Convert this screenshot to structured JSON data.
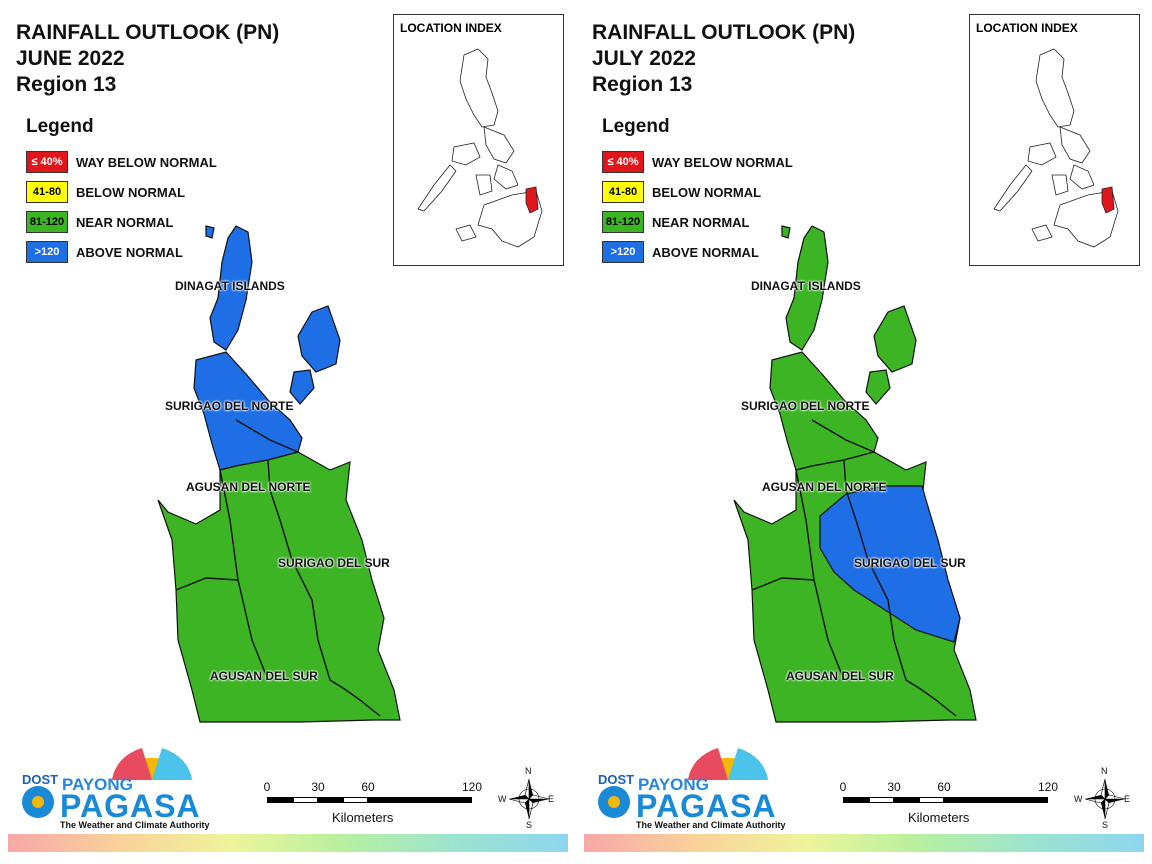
{
  "panels": [
    {
      "title_line1": "RAINFALL OUTLOOK (PN)",
      "title_line2": "JUNE 2022",
      "title_line3": "Region 13",
      "legend_title": "Legend",
      "legend": [
        {
          "code": "≤ 40%",
          "label": "WAY BELOW NORMAL",
          "color": "#e0161a",
          "text_color": "#ffffff"
        },
        {
          "code": "41-80",
          "label": "BELOW NORMAL",
          "color": "#ffff00",
          "text_color": "#000000"
        },
        {
          "code": "81-120",
          "label": "NEAR NORMAL",
          "color": "#3cb424",
          "text_color": "#000000"
        },
        {
          "code": ">120",
          "label": "ABOVE NORMAL",
          "color": "#1e6ee6",
          "text_color": "#ffffff"
        }
      ],
      "location_index_label": "LOCATION INDEX",
      "provinces": {
        "dinagat": "DINAGAT ISLANDS",
        "surigao_norte": "SURIGAO DEL NORTE",
        "agusan_norte": "AGUSAN DEL NORTE",
        "surigao_sur": "SURIGAO DEL SUR",
        "agusan_sur": "AGUSAN DEL SUR"
      },
      "province_category": {
        "dinagat": "ABOVE NORMAL",
        "surigao_norte": "ABOVE NORMAL",
        "agusan_norte": "NEAR NORMAL",
        "surigao_sur": "NEAR NORMAL",
        "agusan_sur": "NEAR NORMAL"
      },
      "scale_ticks": [
        "0",
        "30",
        "60",
        "120"
      ],
      "scale_unit": "Kilometers",
      "compass": {
        "n": "N",
        "s": "S",
        "e": "E",
        "w": "W"
      },
      "logo": {
        "dost": "DOST",
        "payong": "PAYONG",
        "pagasa": "PAGASA",
        "tagline": "The Weather and Climate Authority"
      }
    },
    {
      "title_line1": "RAINFALL OUTLOOK (PN)",
      "title_line2": "JULY 2022",
      "title_line3": "Region 13",
      "legend_title": "Legend",
      "legend": [
        {
          "code": "≤ 40%",
          "label": "WAY BELOW NORMAL",
          "color": "#e0161a",
          "text_color": "#ffffff"
        },
        {
          "code": "41-80",
          "label": "BELOW NORMAL",
          "color": "#ffff00",
          "text_color": "#000000"
        },
        {
          "code": "81-120",
          "label": "NEAR NORMAL",
          "color": "#3cb424",
          "text_color": "#000000"
        },
        {
          "code": ">120",
          "label": "ABOVE NORMAL",
          "color": "#1e6ee6",
          "text_color": "#ffffff"
        }
      ],
      "location_index_label": "LOCATION INDEX",
      "provinces": {
        "dinagat": "DINAGAT ISLANDS",
        "surigao_norte": "SURIGAO DEL NORTE",
        "agusan_norte": "AGUSAN DEL NORTE",
        "surigao_sur": "SURIGAO DEL SUR",
        "agusan_sur": "AGUSAN DEL SUR"
      },
      "province_category": {
        "dinagat": "NEAR NORMAL",
        "surigao_norte": "NEAR NORMAL",
        "agusan_norte": "NEAR NORMAL",
        "surigao_sur": "ABOVE NORMAL",
        "agusan_sur": "NEAR NORMAL"
      },
      "scale_ticks": [
        "0",
        "30",
        "60",
        "120"
      ],
      "scale_unit": "Kilometers",
      "compass": {
        "n": "N",
        "s": "S",
        "e": "E",
        "w": "W"
      },
      "logo": {
        "dost": "DOST",
        "payong": "PAYONG",
        "pagasa": "PAGASA",
        "tagline": "The Weather and Climate Authority"
      }
    }
  ],
  "colors": {
    "near_normal": "#3cb424",
    "above_normal": "#1e6ee6",
    "highlight_region": "#e0161a",
    "border": "#111111"
  }
}
